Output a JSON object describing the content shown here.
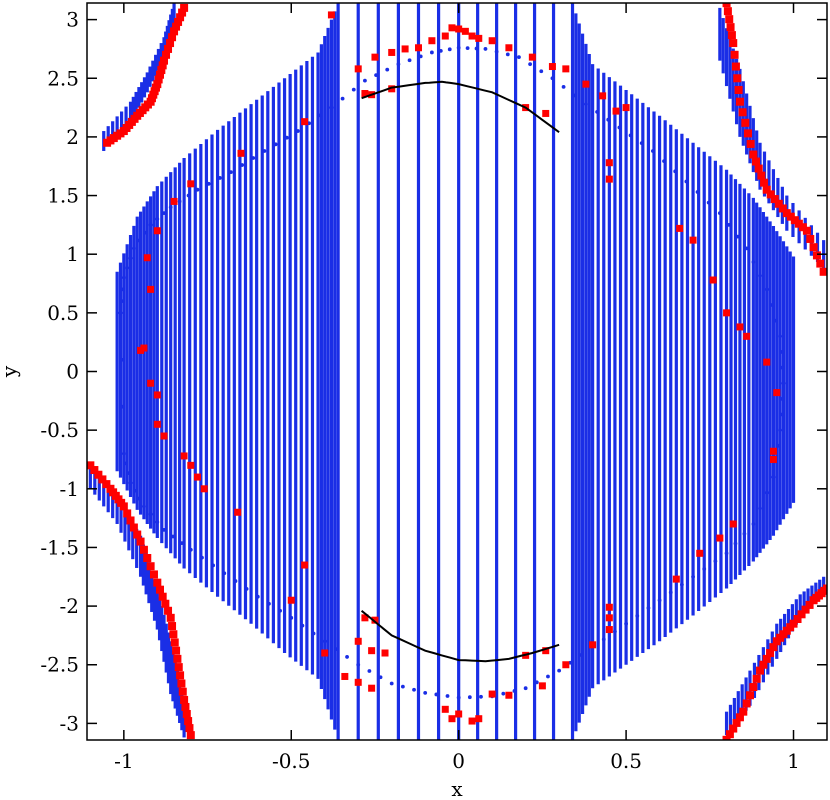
{
  "chart_data": {
    "type": "scatter",
    "xlabel": "x",
    "ylabel": "y",
    "xlim": [
      -1.11,
      1.1
    ],
    "ylim": [
      -3.1416,
      3.1416
    ],
    "x_ticks": [
      -1,
      -0.5,
      0,
      0.5,
      1
    ],
    "x_tick_labels": [
      "-1",
      "-0.5",
      "0",
      "0.5",
      "1"
    ],
    "y_ticks": [
      -3,
      -2.5,
      -2,
      -1.5,
      -1,
      -0.5,
      0,
      0.5,
      1,
      1.5,
      2,
      2.5,
      3
    ],
    "y_tick_labels": [
      "-3",
      "-2.5",
      "-2",
      "-1.5",
      "-1",
      "-0.5",
      "0",
      "0.5",
      "1",
      "1.5",
      "2",
      "2.5",
      "3"
    ],
    "grid": false,
    "legend": "none",
    "colors": {
      "blue": "#1a2ee6",
      "red": "#ff0000",
      "black": "#000000"
    },
    "series": [
      {
        "type": "band",
        "color": "#1a2ee6",
        "segments": [
          [
            [
              -1.02,
              -0.85,
              0.85
            ],
            [
              -0.96,
              -1.18,
              1.32
            ],
            [
              -0.9,
              -1.42,
              1.58
            ],
            [
              -0.82,
              -1.68,
              1.82
            ],
            [
              -0.72,
              -1.92,
              2.06
            ],
            [
              -0.62,
              -2.15,
              2.28
            ],
            [
              -0.52,
              -2.4,
              2.5
            ],
            [
              -0.42,
              -2.62,
              2.72
            ],
            [
              -0.36,
              -3.14,
              3.14
            ],
            [
              0.0,
              -3.14,
              3.14
            ],
            [
              0.34,
              -3.14,
              3.14
            ],
            [
              0.4,
              -2.7,
              2.62
            ],
            [
              0.5,
              -2.5,
              2.4
            ],
            [
              0.6,
              -2.3,
              2.18
            ],
            [
              0.7,
              -2.08,
              1.95
            ],
            [
              0.8,
              -1.85,
              1.72
            ],
            [
              0.88,
              -1.62,
              1.48
            ],
            [
              0.94,
              -1.4,
              1.24
            ],
            [
              1.0,
              -1.12,
              0.98
            ]
          ],
          [
            [
              -1.06,
              1.88,
              2.05
            ],
            [
              -0.98,
              2.12,
              2.3
            ],
            [
              -0.93,
              2.38,
              2.55
            ],
            [
              -0.88,
              2.66,
              2.85
            ],
            [
              -0.85,
              2.95,
              3.14
            ]
          ],
          [
            [
              0.78,
              3.1,
              2.65
            ],
            [
              0.84,
              2.58,
              2.0
            ],
            [
              0.9,
              1.95,
              1.55
            ],
            [
              0.98,
              1.5,
              1.2
            ],
            [
              1.09,
              1.12,
              0.88
            ]
          ],
          [
            [
              -1.1,
              -0.8,
              -1.0
            ],
            [
              -1.02,
              -1.05,
              -1.3
            ],
            [
              -0.95,
              -1.4,
              -1.75
            ],
            [
              -0.9,
              -1.85,
              -2.2
            ],
            [
              -0.86,
              -2.3,
              -2.75
            ],
            [
              -0.82,
              -2.8,
              -3.12
            ]
          ],
          [
            [
              0.8,
              -3.1,
              -2.9
            ],
            [
              0.87,
              -2.85,
              -2.55
            ],
            [
              0.95,
              -2.45,
              -2.15
            ],
            [
              1.02,
              -2.1,
              -1.9
            ],
            [
              1.09,
              -1.88,
              -1.75
            ]
          ]
        ]
      },
      {
        "type": "scatter",
        "color": "#1a2ee6",
        "marker": "dot",
        "curves": [
          [
            [
              -1.01,
              0.5
            ],
            [
              -1.0,
              0.8
            ],
            [
              -0.97,
              1.05
            ],
            [
              -0.92,
              1.25
            ],
            [
              -0.86,
              1.4
            ],
            [
              -0.78,
              1.55
            ],
            [
              -0.68,
              1.7
            ],
            [
              -0.58,
              1.88
            ],
            [
              -0.48,
              2.05
            ],
            [
              -0.38,
              2.25
            ],
            [
              -0.28,
              2.48
            ],
            [
              -0.18,
              2.62
            ],
            [
              -0.08,
              2.72
            ],
            [
              0.0,
              2.76
            ],
            [
              0.08,
              2.75
            ],
            [
              0.18,
              2.68
            ],
            [
              0.28,
              2.5
            ],
            [
              0.38,
              2.28
            ],
            [
              0.48,
              2.08
            ],
            [
              0.58,
              1.88
            ],
            [
              0.68,
              1.62
            ],
            [
              0.78,
              1.35
            ],
            [
              0.86,
              1.05
            ],
            [
              0.92,
              0.7
            ],
            [
              0.96,
              0.3
            ],
            [
              0.97,
              -0.1
            ],
            [
              0.96,
              -0.5
            ],
            [
              0.94,
              -0.9
            ],
            [
              0.88,
              -1.3
            ],
            [
              0.8,
              -1.55
            ],
            [
              0.7,
              -1.75
            ],
            [
              0.6,
              -1.95
            ],
            [
              0.5,
              -2.15
            ],
            [
              0.4,
              -2.35
            ],
            [
              0.3,
              -2.55
            ],
            [
              0.2,
              -2.7
            ],
            [
              0.1,
              -2.77
            ],
            [
              0.0,
              -2.78
            ],
            [
              -0.1,
              -2.74
            ],
            [
              -0.2,
              -2.66
            ],
            [
              -0.3,
              -2.5
            ],
            [
              -0.4,
              -2.3
            ],
            [
              -0.5,
              -2.1
            ],
            [
              -0.6,
              -1.92
            ],
            [
              -0.7,
              -1.72
            ],
            [
              -0.8,
              -1.52
            ],
            [
              -0.88,
              -1.35
            ],
            [
              -0.94,
              -1.15
            ],
            [
              -0.98,
              -0.95
            ],
            [
              -1.0,
              -0.7
            ]
          ]
        ]
      },
      {
        "type": "scatter",
        "color": "#ff0000",
        "marker": "square",
        "points": [
          [
            -0.38,
            3.04
          ],
          [
            -0.3,
            2.58
          ],
          [
            -0.25,
            2.68
          ],
          [
            -0.2,
            2.72
          ],
          [
            -0.16,
            2.75
          ],
          [
            -0.12,
            2.76
          ],
          [
            -0.08,
            2.82
          ],
          [
            -0.04,
            2.86
          ],
          [
            -0.02,
            2.93
          ],
          [
            0.0,
            2.92
          ],
          [
            0.02,
            2.9
          ],
          [
            0.04,
            2.86
          ],
          [
            0.06,
            2.84
          ],
          [
            0.1,
            2.82
          ],
          [
            0.15,
            2.76
          ],
          [
            0.22,
            2.68
          ],
          [
            0.28,
            2.6
          ],
          [
            0.32,
            2.58
          ],
          [
            0.38,
            2.45
          ],
          [
            0.43,
            2.35
          ],
          [
            0.47,
            2.22
          ],
          [
            0.5,
            2.25
          ],
          [
            -0.28,
            2.37
          ],
          [
            -0.26,
            2.36
          ],
          [
            -0.2,
            2.41
          ],
          [
            0.2,
            2.25
          ],
          [
            0.26,
            2.2
          ],
          [
            -0.46,
            2.13
          ],
          [
            0.45,
            1.78
          ],
          [
            0.45,
            1.64
          ],
          [
            -0.65,
            1.86
          ],
          [
            -0.8,
            1.6
          ],
          [
            -0.85,
            1.45
          ],
          [
            -0.9,
            1.2
          ],
          [
            -0.93,
            0.97
          ],
          [
            -0.92,
            0.7
          ],
          [
            -0.95,
            0.18
          ],
          [
            -0.94,
            0.2
          ],
          [
            -0.92,
            -0.1
          ],
          [
            -0.9,
            -0.2
          ],
          [
            -0.9,
            -0.45
          ],
          [
            -0.88,
            -0.55
          ],
          [
            -0.82,
            -0.72
          ],
          [
            -0.8,
            -0.8
          ],
          [
            -0.78,
            -0.9
          ],
          [
            -0.76,
            -1.0
          ],
          [
            0.66,
            1.22
          ],
          [
            0.7,
            1.12
          ],
          [
            0.76,
            0.78
          ],
          [
            0.8,
            0.5
          ],
          [
            0.84,
            0.38
          ],
          [
            0.86,
            0.3
          ],
          [
            0.92,
            0.08
          ],
          [
            0.95,
            -0.18
          ],
          [
            0.94,
            -0.68
          ],
          [
            0.94,
            -0.75
          ],
          [
            0.82,
            -1.3
          ],
          [
            0.78,
            -1.42
          ],
          [
            0.72,
            -1.55
          ],
          [
            0.65,
            -1.77
          ],
          [
            0.45,
            -2.01
          ],
          [
            0.45,
            -2.1
          ],
          [
            -0.46,
            -1.65
          ],
          [
            -0.66,
            -1.2
          ],
          [
            -0.5,
            -1.95
          ],
          [
            -0.3,
            -2.3
          ],
          [
            -0.26,
            -2.38
          ],
          [
            -0.22,
            -2.4
          ],
          [
            -0.28,
            -2.1
          ],
          [
            -0.25,
            -2.12
          ],
          [
            0.2,
            -2.42
          ],
          [
            0.26,
            -2.38
          ],
          [
            0.32,
            -2.5
          ],
          [
            0.4,
            -2.33
          ],
          [
            0.45,
            -2.2
          ],
          [
            -0.4,
            -2.4
          ],
          [
            -0.34,
            -2.6
          ],
          [
            -0.3,
            -2.65
          ],
          [
            -0.26,
            -2.7
          ],
          [
            0.0,
            -2.92
          ],
          [
            0.04,
            -2.98
          ],
          [
            0.06,
            -2.96
          ],
          [
            -0.04,
            -2.88
          ],
          [
            -0.02,
            -2.96
          ],
          [
            0.1,
            -2.75
          ],
          [
            0.15,
            -2.76
          ],
          [
            0.25,
            -2.68
          ]
        ],
        "bands": [
          [
            [
              -1.05,
              1.95
            ],
            [
              -1.0,
              2.05
            ],
            [
              -0.96,
              2.18
            ],
            [
              -0.92,
              2.3
            ],
            [
              -0.9,
              2.45
            ],
            [
              -0.88,
              2.65
            ],
            [
              -0.85,
              2.9
            ],
            [
              -0.82,
              3.1
            ]
          ],
          [
            [
              0.8,
              3.14
            ],
            [
              0.82,
              2.8
            ],
            [
              0.84,
              2.3
            ],
            [
              0.88,
              1.85
            ],
            [
              0.92,
              1.55
            ],
            [
              0.98,
              1.35
            ],
            [
              1.04,
              1.2
            ],
            [
              1.09,
              0.85
            ]
          ],
          [
            [
              -1.1,
              -0.8
            ],
            [
              -1.04,
              -1.0
            ],
            [
              -1.0,
              -1.15
            ],
            [
              -0.95,
              -1.45
            ],
            [
              -0.9,
              -1.8
            ],
            [
              -0.86,
              -2.1
            ],
            [
              -0.84,
              -2.45
            ],
            [
              -0.82,
              -2.8
            ],
            [
              -0.8,
              -3.1
            ]
          ],
          [
            [
              0.8,
              -3.14
            ],
            [
              0.85,
              -2.9
            ],
            [
              0.9,
              -2.55
            ],
            [
              0.95,
              -2.3
            ],
            [
              1.0,
              -2.15
            ],
            [
              1.06,
              -1.95
            ],
            [
              1.1,
              -1.85
            ]
          ]
        ]
      },
      {
        "type": "line",
        "color": "#000000",
        "curves": [
          [
            [
              -0.29,
              2.33
            ],
            [
              -0.2,
              2.42
            ],
            [
              -0.1,
              2.46
            ],
            [
              -0.05,
              2.47
            ],
            [
              0.0,
              2.45
            ],
            [
              0.1,
              2.38
            ],
            [
              0.2,
              2.25
            ],
            [
              0.3,
              2.04
            ]
          ],
          [
            [
              -0.29,
              -2.04
            ],
            [
              -0.2,
              -2.25
            ],
            [
              -0.1,
              -2.38
            ],
            [
              0.0,
              -2.46
            ],
            [
              0.08,
              -2.47
            ],
            [
              0.15,
              -2.45
            ],
            [
              0.22,
              -2.4
            ],
            [
              0.3,
              -2.33
            ]
          ]
        ]
      }
    ]
  }
}
